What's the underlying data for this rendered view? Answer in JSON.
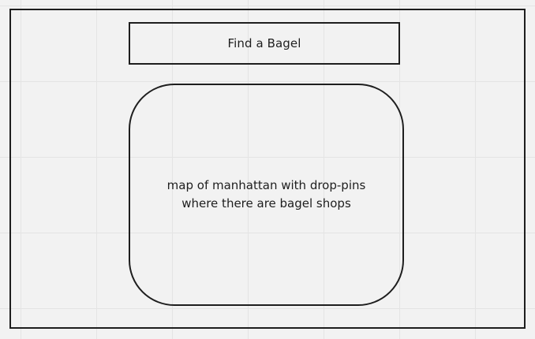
{
  "wireframe": {
    "title_button_label": "Find a Bagel",
    "map_placeholder": {
      "line1": "map of manhattan with drop-pins",
      "line2": "where there are bagel shops"
    }
  },
  "colors": {
    "stroke": "#1e1e1e",
    "canvas_background": "#f2f2f2",
    "grid_line": "#e4e4e4"
  }
}
